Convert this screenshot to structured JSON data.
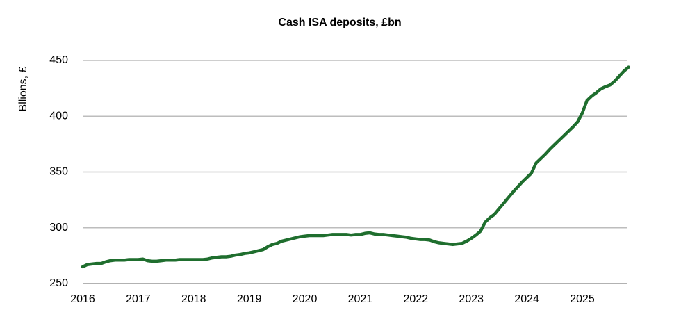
{
  "chart_data": {
    "type": "line",
    "title": "Cash ISA deposits, £bn",
    "y_label": "Bllions, £",
    "categories": [
      "2016",
      null,
      null,
      null,
      null,
      null,
      null,
      null,
      null,
      null,
      null,
      null,
      "2017",
      null,
      null,
      null,
      null,
      null,
      null,
      null,
      null,
      null,
      null,
      null,
      "2018",
      null,
      null,
      null,
      null,
      null,
      null,
      null,
      null,
      null,
      null,
      null,
      "2019",
      null,
      null,
      null,
      null,
      null,
      null,
      null,
      null,
      null,
      null,
      null,
      "2020",
      null,
      null,
      null,
      null,
      null,
      null,
      null,
      null,
      null,
      null,
      null,
      "2021",
      null,
      null,
      null,
      null,
      null,
      null,
      null,
      null,
      null,
      null,
      null,
      "2022",
      null,
      null,
      null,
      null,
      null,
      null,
      null,
      null,
      null,
      null,
      null,
      "2023",
      null,
      null,
      null,
      null,
      null,
      null,
      null,
      null,
      null,
      null,
      null,
      "2024",
      null,
      null,
      null,
      null,
      null,
      null,
      null,
      null,
      null,
      null,
      null,
      "2025",
      null,
      null,
      null,
      null,
      null,
      null,
      null,
      null,
      null,
      null
    ],
    "values": [
      265,
      267,
      267.5,
      268,
      268,
      269.5,
      270.5,
      271,
      271,
      271,
      271.5,
      271.5,
      271.5,
      272,
      270.5,
      270,
      270,
      270.5,
      271,
      271,
      271,
      271.5,
      271.5,
      271.5,
      271.5,
      271.5,
      271.5,
      272,
      273,
      273.5,
      274,
      274,
      274.5,
      275.5,
      276,
      277,
      277.5,
      278.5,
      279.5,
      280.5,
      283,
      285,
      286,
      288,
      289,
      290,
      291,
      292,
      292.5,
      293,
      293,
      293,
      293,
      293.5,
      294,
      294,
      294,
      294,
      293.5,
      294,
      294,
      295,
      295.5,
      294.5,
      294,
      294,
      293.5,
      293,
      292.5,
      292,
      291.5,
      290.5,
      290,
      289.5,
      289.5,
      289,
      287.5,
      286.5,
      286,
      285.5,
      285,
      285.5,
      286,
      288,
      290.5,
      293.5,
      297,
      305,
      309,
      312,
      317,
      322,
      327,
      332,
      336.5,
      341,
      345,
      349,
      358,
      362,
      366,
      370.5,
      374.5,
      378.5,
      382.5,
      386.5,
      390.5,
      395,
      403,
      414,
      418,
      421,
      424.5,
      426.5,
      428,
      431.5,
      436,
      440.5,
      444
    ],
    "color": "#1f6e2e",
    "ylim": [
      250,
      450
    ],
    "yticks": [
      250,
      300,
      350,
      400,
      450
    ],
    "grid": true
  }
}
